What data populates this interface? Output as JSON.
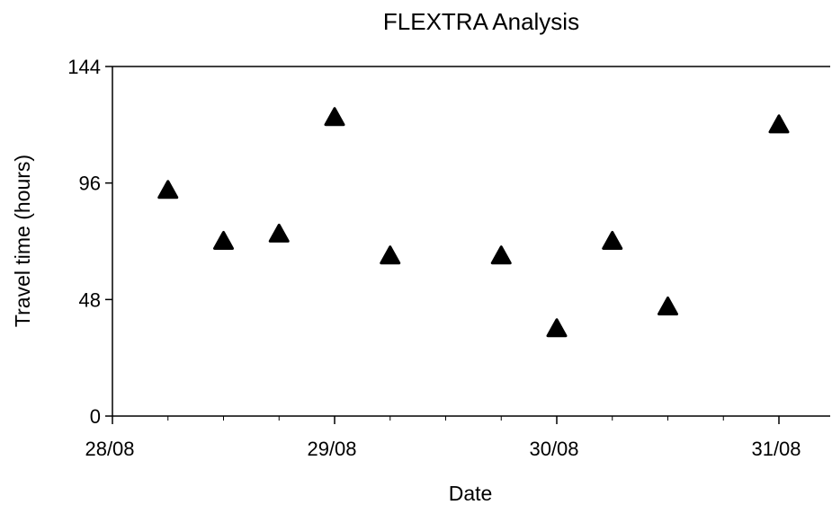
{
  "chart_data": {
    "type": "scatter",
    "title": "FLEXTRA Analysis",
    "xlabel": "Date",
    "ylabel": "Travel time (hours)",
    "x_tick_labels": [
      "28/08",
      "29/08",
      "30/08",
      "31/08"
    ],
    "y_tick_labels": [
      "0",
      "48",
      "96",
      "144"
    ],
    "ylim": [
      0,
      144
    ],
    "xlim": [
      "2008-08-28T00:00",
      "2008-08-31T06:00"
    ],
    "grid": false,
    "marker": "filled-triangle",
    "marker_color": "#000000",
    "points": [
      {
        "x": "2008-08-28T06:00",
        "y": 93
      },
      {
        "x": "2008-08-28T12:00",
        "y": 72
      },
      {
        "x": "2008-08-28T18:00",
        "y": 75
      },
      {
        "x": "2008-08-29T00:00",
        "y": 123
      },
      {
        "x": "2008-08-29T06:00",
        "y": 66
      },
      {
        "x": "2008-08-29T18:00",
        "y": 66
      },
      {
        "x": "2008-08-30T00:00",
        "y": 36
      },
      {
        "x": "2008-08-30T06:00",
        "y": 72
      },
      {
        "x": "2008-08-30T12:00",
        "y": 45
      },
      {
        "x": "2008-08-31T00:00",
        "y": 120
      }
    ]
  }
}
